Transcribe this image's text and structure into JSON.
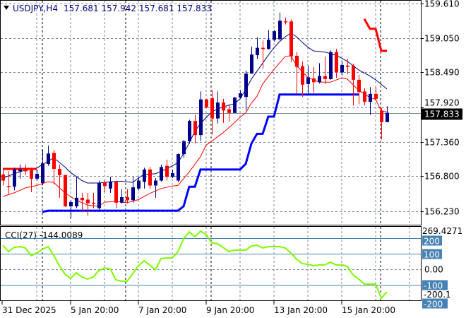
{
  "header": {
    "symbol": "USDJPY,H4",
    "ohlc": "157.681 157.942 157.681 157.833",
    "menu_icon": "triangle-down-icon"
  },
  "colors": {
    "bull": "#00008b",
    "bear": "#ff0000",
    "ma_fast": "#000080",
    "ma_slow": "#ff0000",
    "step_low": "#0000ff",
    "step_high": "#ff0000",
    "cci": "#7cfc00",
    "level": "#4682b4",
    "grid": "#778899"
  },
  "chart_data": [
    {
      "type": "candlestick",
      "title": "USDJPY,H4",
      "ylim": [
        156.23,
        159.61
      ],
      "y_ticks": [
        "159.610",
        "159.050",
        "158.490",
        "157.920",
        "157.360",
        "156.800",
        "156.230"
      ],
      "y_tick_values": [
        159.61,
        159.05,
        158.49,
        157.92,
        157.36,
        156.8,
        156.23
      ],
      "current_price": "157.833",
      "grid": true,
      "x_labels": [
        "31 Dec 2025",
        "5 Jan 20:00",
        "7 Jan 20:00",
        "9 Jan 20:00",
        "13 Jan 20:00",
        "15 Jan 20:00"
      ],
      "ohlc": [
        [
          156.83,
          156.93,
          156.65,
          156.73
        ],
        [
          156.64,
          156.88,
          156.51,
          156.63
        ],
        [
          156.63,
          156.94,
          156.57,
          156.91
        ],
        [
          156.88,
          156.99,
          156.76,
          156.91
        ],
        [
          156.92,
          156.99,
          156.82,
          156.88
        ],
        [
          156.9,
          156.94,
          156.54,
          156.76
        ],
        [
          156.76,
          156.91,
          156.73,
          156.84
        ],
        [
          156.69,
          157.23,
          156.65,
          157.01
        ],
        [
          157.0,
          157.3,
          156.97,
          157.17
        ],
        [
          157.18,
          157.23,
          156.67,
          156.92
        ],
        [
          156.92,
          156.99,
          156.45,
          156.82
        ],
        [
          156.82,
          156.82,
          156.3,
          156.31
        ],
        [
          156.31,
          156.41,
          156.11,
          156.38
        ],
        [
          156.31,
          156.79,
          156.28,
          156.45
        ],
        [
          156.45,
          156.53,
          156.22,
          156.41
        ],
        [
          156.42,
          156.53,
          156.16,
          156.36
        ],
        [
          156.37,
          156.53,
          156.28,
          156.36
        ],
        [
          156.28,
          156.73,
          156.22,
          156.69
        ],
        [
          156.7,
          156.73,
          156.54,
          156.64
        ],
        [
          156.6,
          156.79,
          156.53,
          156.71
        ],
        [
          156.71,
          156.73,
          156.28,
          156.37
        ],
        [
          156.37,
          156.59,
          156.36,
          156.46
        ],
        [
          156.46,
          156.59,
          156.36,
          156.41
        ],
        [
          156.41,
          156.79,
          156.37,
          156.62
        ],
        [
          156.6,
          156.79,
          156.57,
          156.73
        ],
        [
          156.71,
          156.94,
          156.6,
          156.91
        ],
        [
          156.91,
          156.95,
          156.6,
          156.65
        ],
        [
          156.65,
          156.77,
          156.45,
          156.73
        ],
        [
          156.73,
          156.99,
          156.71,
          156.95
        ],
        [
          156.97,
          157.07,
          156.73,
          156.79
        ],
        [
          156.79,
          156.91,
          156.77,
          156.85
        ],
        [
          156.73,
          157.17,
          156.71,
          157.16
        ],
        [
          157.16,
          157.39,
          157.1,
          157.37
        ],
        [
          157.37,
          157.72,
          157.33,
          157.7
        ],
        [
          157.7,
          157.8,
          157.34,
          157.47
        ],
        [
          157.47,
          158.18,
          157.37,
          158.05
        ],
        [
          158.05,
          158.06,
          157.91,
          157.92
        ],
        [
          158.07,
          158.2,
          157.48,
          157.74
        ],
        [
          157.74,
          158.18,
          157.66,
          158.0
        ],
        [
          158.0,
          158.06,
          157.67,
          157.87
        ],
        [
          157.89,
          157.97,
          157.69,
          157.83
        ],
        [
          157.83,
          158.09,
          157.83,
          158.08
        ],
        [
          158.08,
          158.2,
          158.06,
          158.15
        ],
        [
          158.09,
          158.52,
          157.87,
          158.47
        ],
        [
          158.47,
          158.91,
          158.47,
          158.78
        ],
        [
          158.77,
          159.06,
          158.71,
          158.89
        ],
        [
          158.89,
          159.01,
          158.55,
          158.87
        ],
        [
          158.87,
          159.18,
          158.86,
          159.02
        ],
        [
          159.02,
          159.18,
          158.99,
          159.16
        ],
        [
          159.03,
          159.46,
          159.01,
          159.33
        ],
        [
          159.32,
          159.38,
          159.27,
          159.31
        ],
        [
          159.32,
          159.35,
          158.66,
          158.75
        ],
        [
          158.76,
          158.82,
          158.14,
          158.58
        ],
        [
          158.59,
          158.67,
          158.09,
          158.29
        ],
        [
          158.3,
          158.6,
          158.14,
          158.41
        ],
        [
          158.39,
          158.58,
          158.16,
          158.33
        ],
        [
          158.33,
          158.64,
          158.31,
          158.43
        ],
        [
          158.43,
          158.75,
          158.3,
          158.38
        ],
        [
          158.38,
          158.85,
          158.37,
          158.82
        ],
        [
          158.82,
          158.87,
          158.4,
          158.49
        ],
        [
          158.49,
          158.67,
          158.44,
          158.61
        ],
        [
          158.6,
          158.71,
          158.46,
          158.58
        ],
        [
          158.6,
          158.63,
          157.95,
          158.37
        ],
        [
          158.37,
          158.45,
          157.97,
          158.17
        ],
        [
          158.18,
          158.23,
          157.95,
          158.01
        ],
        [
          158.01,
          158.25,
          157.8,
          158.14
        ],
        [
          158.14,
          158.25,
          158.02,
          158.06
        ],
        [
          157.87,
          157.91,
          157.4,
          157.68
        ],
        [
          157.681,
          157.942,
          157.681,
          157.833
        ]
      ],
      "overlays": {
        "ma_fast": [
          [
            0,
            156.77
          ],
          [
            2,
            156.84
          ],
          [
            4,
            156.9
          ],
          [
            6,
            156.93
          ],
          [
            7,
            156.99
          ],
          [
            9,
            157.1
          ],
          [
            11,
            156.95
          ],
          [
            12,
            156.86
          ],
          [
            14,
            156.73
          ],
          [
            15,
            156.69
          ],
          [
            17,
            156.69
          ],
          [
            19,
            156.71
          ],
          [
            21,
            156.72
          ],
          [
            23,
            156.7
          ],
          [
            24,
            156.77
          ],
          [
            25,
            156.83
          ],
          [
            27,
            156.84
          ],
          [
            29,
            156.92
          ],
          [
            31,
            157.02
          ],
          [
            32,
            157.17
          ],
          [
            33,
            157.34
          ],
          [
            34,
            157.53
          ],
          [
            35,
            157.66
          ],
          [
            37,
            157.85
          ],
          [
            39,
            157.93
          ],
          [
            41,
            157.98
          ],
          [
            42,
            158.06
          ],
          [
            43,
            158.21
          ],
          [
            44,
            158.38
          ],
          [
            45,
            158.51
          ],
          [
            46,
            158.64
          ],
          [
            47,
            158.77
          ],
          [
            48,
            158.89
          ],
          [
            49,
            158.99
          ],
          [
            50,
            159.07
          ],
          [
            51,
            159.13
          ],
          [
            52,
            159.07
          ],
          [
            53,
            158.98
          ],
          [
            54,
            158.9
          ],
          [
            55,
            158.84
          ],
          [
            57,
            158.82
          ],
          [
            59,
            158.77
          ],
          [
            60,
            158.72
          ],
          [
            61,
            158.67
          ],
          [
            62,
            158.6
          ],
          [
            63,
            158.53
          ],
          [
            64,
            158.48
          ],
          [
            65,
            158.43
          ],
          [
            66,
            158.37
          ],
          [
            68,
            158.22
          ]
        ],
        "ma_slow": [
          [
            0,
            156.47
          ],
          [
            2,
            156.53
          ],
          [
            4,
            156.61
          ],
          [
            6,
            156.65
          ],
          [
            8,
            156.71
          ],
          [
            9,
            156.7
          ],
          [
            11,
            156.53
          ],
          [
            13,
            156.41
          ],
          [
            15,
            156.33
          ],
          [
            17,
            156.31
          ],
          [
            18,
            156.38
          ],
          [
            20,
            156.39
          ],
          [
            22,
            156.37
          ],
          [
            24,
            156.42
          ],
          [
            26,
            156.52
          ],
          [
            28,
            156.6
          ],
          [
            30,
            156.64
          ],
          [
            31,
            156.65
          ],
          [
            33,
            156.87
          ],
          [
            35,
            157.12
          ],
          [
            36,
            157.31
          ],
          [
            37,
            157.37
          ],
          [
            39,
            157.51
          ],
          [
            41,
            157.67
          ],
          [
            42,
            157.76
          ],
          [
            43,
            157.83
          ],
          [
            44,
            157.99
          ],
          [
            45,
            158.1
          ],
          [
            46,
            158.3
          ],
          [
            48,
            158.54
          ],
          [
            50,
            158.75
          ],
          [
            51,
            158.76
          ],
          [
            52,
            158.6
          ],
          [
            54,
            158.41
          ],
          [
            56,
            158.33
          ],
          [
            58,
            158.33
          ],
          [
            60,
            158.4
          ],
          [
            61,
            158.38
          ],
          [
            63,
            158.2
          ],
          [
            65,
            158.08
          ],
          [
            66,
            158.05
          ],
          [
            67,
            157.86
          ],
          [
            68,
            157.85
          ]
        ],
        "step_low": [
          [
            7,
            156.22
          ],
          [
            8,
            156.24
          ],
          [
            31,
            156.24
          ],
          [
            32,
            156.31
          ],
          [
            33,
            156.63
          ],
          [
            34,
            156.63
          ],
          [
            35,
            156.91
          ],
          [
            42,
            156.91
          ],
          [
            43,
            157.0
          ],
          [
            44,
            157.33
          ],
          [
            45,
            157.49
          ],
          [
            46,
            157.49
          ],
          [
            47,
            157.77
          ],
          [
            48,
            157.77
          ],
          [
            49,
            158.13
          ],
          [
            63,
            158.13
          ]
        ],
        "step_high_a": [
          [
            0,
            156.92
          ],
          [
            6,
            156.92
          ]
        ],
        "step_high_b": [
          [
            64,
            159.36
          ],
          [
            65,
            159.2
          ],
          [
            66,
            159.2
          ],
          [
            67,
            158.84
          ],
          [
            68,
            158.84
          ]
        ]
      }
    },
    {
      "type": "line",
      "title": "CCI(27) -144.0089",
      "ylim": [
        -200.1,
        269.4271
      ],
      "top_label": "269.4271",
      "bottom_label": "-200.1",
      "levels": [
        {
          "value": 200,
          "label": "200"
        },
        {
          "value": 100,
          "label": "100"
        },
        {
          "value": 0,
          "label": "0.00"
        },
        {
          "value": -100,
          "label": "-100"
        },
        {
          "value": -200,
          "label": "-200"
        }
      ],
      "values": [
        156,
        115,
        142,
        147,
        138,
        88,
        106,
        129,
        147,
        92,
        24,
        -30,
        -58,
        -21,
        -49,
        -62,
        -49,
        -8,
        10,
        6,
        -67,
        -76,
        -76,
        -26,
        24,
        56,
        29,
        -3,
        70,
        74,
        74,
        115,
        197,
        242,
        210,
        247,
        224,
        170,
        165,
        142,
        115,
        124,
        124,
        124,
        151,
        156,
        138,
        147,
        147,
        147,
        138,
        106,
        65,
        38,
        33,
        24,
        29,
        29,
        47,
        29,
        29,
        20,
        -35,
        -62,
        -94,
        -94,
        -94,
        -185,
        -144.0089
      ]
    }
  ]
}
